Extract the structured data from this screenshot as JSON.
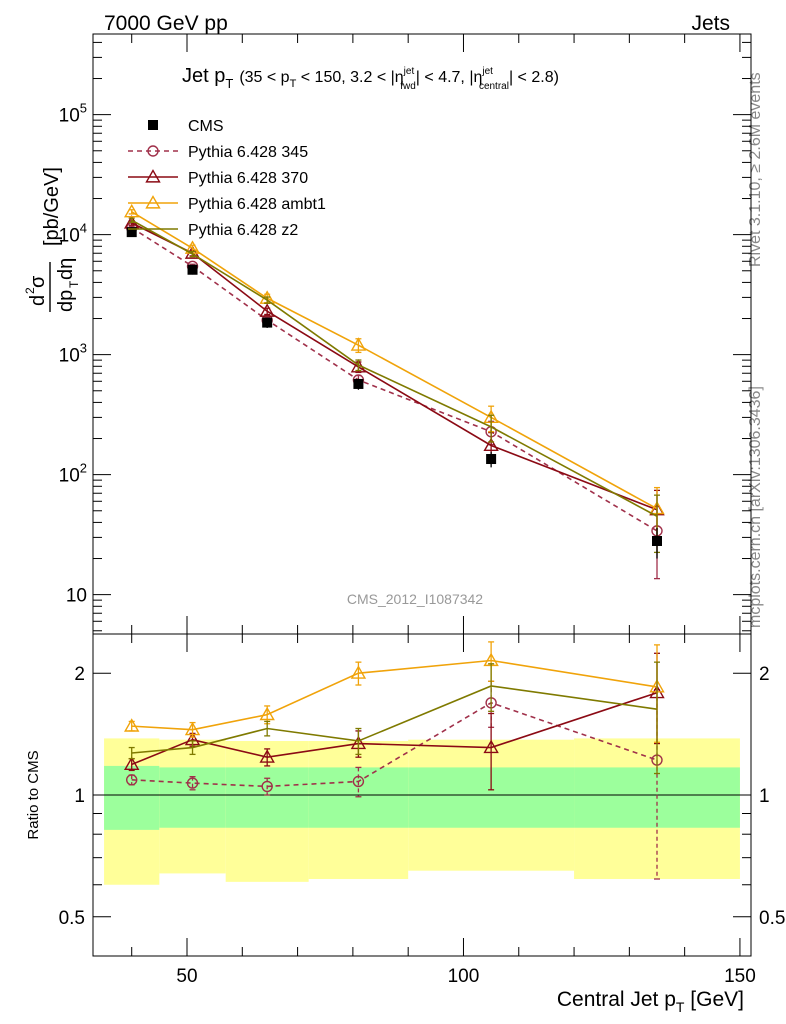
{
  "header": {
    "left": "7000 GeV pp",
    "right": "Jets"
  },
  "side_labels": {
    "rivet": "Rivet 3.1.10, ≥ 2.6M events",
    "mcplots": "mcplots.cern.ch [arXiv:1306.3436]"
  },
  "plot_title": {
    "main": "Jet p",
    "main_sub": "T",
    "sel_1": "(35 < p",
    "sel_1_sub": "T",
    "sel_2": " < 150, 3.2 < |η",
    "sel_2_sup": "jet",
    "sel_2_sub": "fwd",
    "sel_3": "| < 4.7, |η",
    "sel_3_sup": "jet",
    "sel_3_sub": "central",
    "sel_4": "| < 2.8)"
  },
  "watermark": "CMS_2012_I1087342",
  "colors": {
    "cms": "#000000",
    "p345": "#a0304a",
    "p370": "#8b0a14",
    "ambt1": "#f0a30a",
    "z2": "#7f7a00",
    "band_inner": "#9cff9c",
    "band_outer": "#ffff99"
  },
  "chart_data": {
    "type": "line",
    "title": "Jet p_T (35 < p_T < 150, 3.2 < |eta^jet_fwd| < 4.7, |eta^jet_central| < 2.8)",
    "xlabel": "Central Jet p",
    "xlabel_sub": "T",
    "xlabel_unit": " [GeV]",
    "ylabel_main": "[pb/GeV]",
    "ylabel_ratio": "Ratio to CMS",
    "xlim": [
      33,
      152
    ],
    "ylim_main": [
      4.7,
      470000
    ],
    "ylog_main": true,
    "ylim_ratio": [
      0.4,
      2.5
    ],
    "ylog_ratio": true,
    "x_ticks": [
      50,
      100,
      150
    ],
    "x_tick_labels": [
      "50",
      "100",
      "150"
    ],
    "main_y_tick_labels": [
      "10",
      "10²",
      "10³",
      "10⁴",
      "10⁵"
    ],
    "main_y_tick_values": [
      10,
      100,
      1000,
      10000,
      100000
    ],
    "ratio_y_tick_labels": [
      "0.5",
      "1",
      "2"
    ],
    "ratio_y_tick_values": [
      0.5,
      1,
      2
    ],
    "bins": [
      [
        35,
        45
      ],
      [
        45,
        57
      ],
      [
        57,
        72
      ],
      [
        72,
        90
      ],
      [
        90,
        120
      ],
      [
        120,
        150
      ]
    ],
    "data": {
      "name": "CMS",
      "x": [
        40,
        51,
        64.5,
        81,
        105,
        135
      ],
      "y": [
        10500,
        5100,
        1850,
        570,
        135,
        28
      ],
      "err_up": [
        900,
        450,
        180,
        60,
        20,
        8
      ],
      "err_dn": [
        900,
        450,
        180,
        60,
        20,
        8
      ]
    },
    "band_inner": [
      0.18,
      0.17,
      0.17,
      0.17,
      0.17,
      0.17
    ],
    "band_outer_up": [
      0.38,
      0.37,
      0.36,
      0.36,
      0.37,
      0.38
    ],
    "band_outer_dn": [
      0.4,
      0.36,
      0.39,
      0.38,
      0.35,
      0.38
    ],
    "series": [
      {
        "name": "Pythia 6.428 345",
        "key": "p345",
        "marker": "circle",
        "dashed": true,
        "x": [
          40,
          51,
          64.5,
          81,
          105,
          135
        ],
        "y": [
          11400,
          5450,
          1940,
          615,
          228,
          34
        ],
        "ratio": [
          1.09,
          1.07,
          1.05,
          1.08,
          1.69,
          1.22
        ],
        "ratio_err": [
          0.03,
          0.04,
          0.05,
          0.09,
          0.22,
          0.6
        ]
      },
      {
        "name": "Pythia 6.428 370",
        "key": "p370",
        "marker": "triangle",
        "dashed": false,
        "x": [
          40,
          51,
          64.5,
          81,
          105,
          135
        ],
        "y": [
          12500,
          7000,
          2300,
          790,
          175,
          51
        ],
        "ratio": [
          1.19,
          1.37,
          1.24,
          1.34,
          1.31,
          1.79
        ],
        "ratio_err": [
          0.04,
          0.05,
          0.06,
          0.1,
          0.28,
          0.45
        ]
      },
      {
        "name": "Pythia 6.428 ambt1",
        "key": "ambt1",
        "marker": "triangle",
        "dashed": false,
        "x": [
          40,
          51,
          64.5,
          81,
          105,
          135
        ],
        "y": [
          15500,
          7700,
          2950,
          1200,
          300,
          52
        ],
        "ratio": [
          1.48,
          1.45,
          1.58,
          2.0,
          2.15,
          1.85
        ],
        "ratio_err": [
          0.04,
          0.06,
          0.08,
          0.13,
          0.24,
          0.5
        ]
      },
      {
        "name": "Pythia 6.428 z2",
        "key": "z2",
        "marker": "none",
        "dashed": false,
        "x": [
          40,
          51,
          64.5,
          81,
          105,
          135
        ],
        "y": [
          13200,
          6900,
          2850,
          820,
          250,
          45
        ],
        "ratio": [
          1.27,
          1.31,
          1.46,
          1.36,
          1.86,
          1.63
        ],
        "ratio_err": [
          0.04,
          0.05,
          0.06,
          0.1,
          0.25,
          0.5
        ]
      }
    ]
  }
}
